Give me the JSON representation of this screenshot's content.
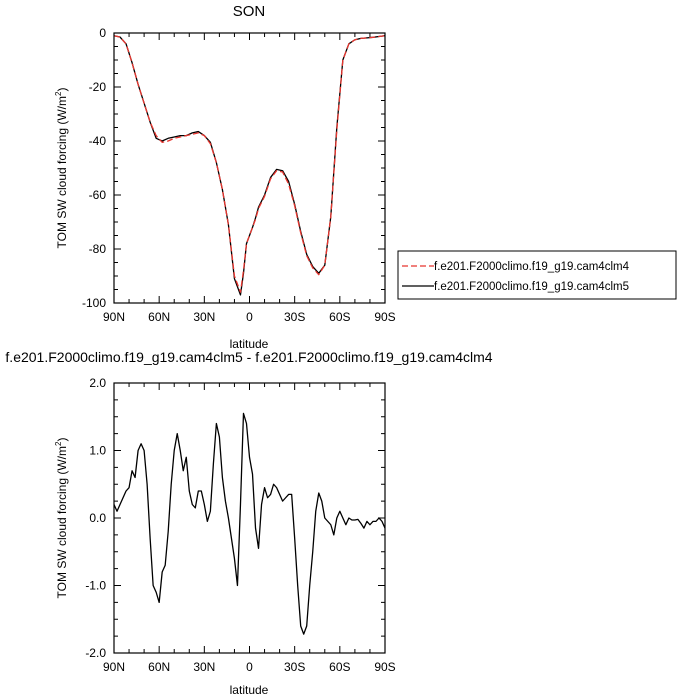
{
  "chart_data": [
    {
      "type": "line",
      "title": "SON",
      "xlabel": "latitude",
      "ylabel_main": "TOM SW cloud forcing (W/m",
      "ylabel_sup": "2",
      "ylabel_close": ")",
      "xlim": [
        90,
        -90
      ],
      "ylim": [
        -100,
        0
      ],
      "x_ticks": [
        {
          "value": 90,
          "label": "90N"
        },
        {
          "value": 60,
          "label": "60N"
        },
        {
          "value": 30,
          "label": "30N"
        },
        {
          "value": 0,
          "label": "0"
        },
        {
          "value": -30,
          "label": "30S"
        },
        {
          "value": -60,
          "label": "60S"
        },
        {
          "value": -90,
          "label": "90S"
        }
      ],
      "y_ticks": [
        {
          "value": 0,
          "label": "0"
        },
        {
          "value": -20,
          "label": "-20"
        },
        {
          "value": -40,
          "label": "-40"
        },
        {
          "value": -60,
          "label": "-60"
        },
        {
          "value": -80,
          "label": "-80"
        },
        {
          "value": -100,
          "label": "-100"
        }
      ],
      "legend_position": "right",
      "series": [
        {
          "name": "f.e201.F2000climo.f19_g19.cam4clm4",
          "color": "#e8352e",
          "dash": "dashed",
          "x": [
            90,
            86,
            82,
            78,
            74,
            70,
            66,
            62,
            58,
            54,
            50,
            46,
            42,
            38,
            34,
            30,
            26,
            22,
            18,
            14,
            10,
            6,
            4,
            2,
            0,
            -2,
            -4,
            -6,
            -10,
            -14,
            -18,
            -22,
            -26,
            -30,
            -34,
            -38,
            -42,
            -46,
            -50,
            -54,
            -58,
            -62,
            -66,
            -70,
            -74,
            -78,
            -82,
            -86,
            -90
          ],
          "y": [
            -1,
            -1.5,
            -4,
            -11,
            -19,
            -26,
            -33,
            -38,
            -40.5,
            -40,
            -39,
            -38.5,
            -38,
            -37.5,
            -37,
            -38,
            -41,
            -48,
            -58,
            -71,
            -90,
            -96,
            -88,
            -78,
            -75,
            -72,
            -69,
            -65,
            -60.5,
            -54,
            -51,
            -51.5,
            -56,
            -64,
            -74,
            -82.5,
            -87,
            -89.5,
            -86,
            -68,
            -36,
            -10,
            -4,
            -2.5,
            -2,
            -1.8,
            -1.6,
            -1.3,
            -1
          ]
        },
        {
          "name": "f.e201.F2000climo.f19_g19.cam4clm5",
          "color": "#000000",
          "dash": "solid",
          "x": [
            90,
            86,
            82,
            78,
            74,
            70,
            66,
            62,
            58,
            54,
            50,
            46,
            42,
            38,
            34,
            30,
            26,
            22,
            18,
            14,
            10,
            6,
            4,
            2,
            0,
            -2,
            -4,
            -6,
            -10,
            -14,
            -18,
            -22,
            -26,
            -30,
            -34,
            -38,
            -42,
            -46,
            -50,
            -54,
            -58,
            -62,
            -66,
            -70,
            -74,
            -78,
            -82,
            -86,
            -90
          ],
          "y": [
            -1,
            -1.5,
            -4,
            -11,
            -19,
            -26,
            -33,
            -39,
            -40,
            -39,
            -38.5,
            -38,
            -38,
            -37,
            -36.5,
            -38,
            -40.5,
            -48,
            -58,
            -71,
            -91,
            -97,
            -89,
            -78,
            -75,
            -72,
            -68.5,
            -64.5,
            -60,
            -53.5,
            -50.5,
            -51,
            -55,
            -63.5,
            -73.5,
            -82,
            -86.5,
            -89,
            -86,
            -68,
            -35,
            -10,
            -4,
            -2.5,
            -2,
            -1.8,
            -1.6,
            -1.3,
            -1
          ]
        }
      ]
    },
    {
      "type": "line",
      "title": "f.e201.F2000climo.f19_g19.cam4clm5 - f.e201.F2000climo.f19_g19.cam4clm4",
      "xlabel": "latitude",
      "ylabel_main": "TOM SW cloud forcing (W/m",
      "ylabel_sup": "2",
      "ylabel_close": ")",
      "xlim": [
        90,
        -90
      ],
      "ylim": [
        -2.0,
        2.0
      ],
      "x_ticks": [
        {
          "value": 90,
          "label": "90N"
        },
        {
          "value": 60,
          "label": "60N"
        },
        {
          "value": 30,
          "label": "30N"
        },
        {
          "value": 0,
          "label": "0"
        },
        {
          "value": -30,
          "label": "30S"
        },
        {
          "value": -60,
          "label": "60S"
        },
        {
          "value": -90,
          "label": "90S"
        }
      ],
      "y_ticks": [
        {
          "value": 2.0,
          "label": "2.0"
        },
        {
          "value": 1.0,
          "label": "1.0"
        },
        {
          "value": 0.0,
          "label": "0.0"
        },
        {
          "value": -1.0,
          "label": "-1.0"
        },
        {
          "value": -2.0,
          "label": "-2.0"
        }
      ],
      "series": [
        {
          "color": "#000000",
          "dash": "solid",
          "x": [
            90,
            88,
            86,
            84,
            82,
            80,
            78,
            76,
            74,
            72,
            70,
            68,
            66,
            64,
            62,
            60,
            58,
            56,
            54,
            52,
            50,
            48,
            46,
            44,
            42,
            40,
            38,
            36,
            34,
            32,
            30,
            28,
            26,
            24,
            22,
            20,
            18,
            16,
            14,
            12,
            10,
            8,
            6,
            4,
            2,
            0,
            -2,
            -4,
            -6,
            -8,
            -10,
            -12,
            -14,
            -16,
            -18,
            -20,
            -22,
            -24,
            -26,
            -28,
            -30,
            -32,
            -34,
            -36,
            -38,
            -40,
            -42,
            -44,
            -46,
            -48,
            -50,
            -52,
            -54,
            -56,
            -58,
            -60,
            -62,
            -64,
            -66,
            -68,
            -70,
            -72,
            -74,
            -76,
            -78,
            -80,
            -82,
            -84,
            -86,
            -88,
            -90
          ],
          "y": [
            0.2,
            0.1,
            0.2,
            0.3,
            0.4,
            0.45,
            0.7,
            0.6,
            1.0,
            1.1,
            1.0,
            0.5,
            -0.3,
            -1.0,
            -1.1,
            -1.25,
            -0.8,
            -0.7,
            -0.2,
            0.5,
            1.0,
            1.25,
            1.0,
            0.7,
            0.9,
            0.4,
            0.2,
            0.15,
            0.4,
            0.4,
            0.2,
            -0.05,
            0.1,
            0.8,
            1.4,
            1.2,
            0.6,
            0.25,
            0.0,
            -0.3,
            -0.6,
            -1.0,
            0.2,
            1.55,
            1.4,
            0.9,
            0.65,
            -0.15,
            -0.45,
            0.2,
            0.45,
            0.3,
            0.35,
            0.5,
            0.45,
            0.35,
            0.25,
            0.3,
            0.35,
            0.35,
            -0.3,
            -1.0,
            -1.6,
            -1.72,
            -1.6,
            -1.0,
            -0.5,
            0.1,
            0.37,
            0.25,
            0.0,
            -0.05,
            -0.1,
            -0.25,
            0.0,
            0.1,
            0.0,
            -0.1,
            0.0,
            -0.03,
            -0.03,
            -0.02,
            -0.08,
            -0.15,
            -0.05,
            -0.1,
            -0.05,
            -0.05,
            0.0,
            -0.05,
            -0.15
          ]
        }
      ]
    }
  ]
}
